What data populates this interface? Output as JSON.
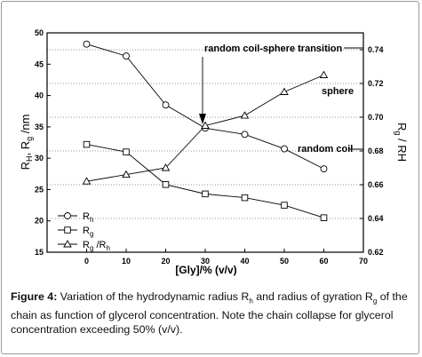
{
  "chart_data": {
    "type": "line",
    "x": [
      0,
      10,
      20,
      30,
      40,
      50,
      60
    ],
    "xlim": [
      -10,
      70
    ],
    "xticks": [
      0,
      10,
      20,
      30,
      40,
      50,
      60,
      70
    ],
    "xlabel": "[Gly]/% (v/v)",
    "ylabel_left_main": "R",
    "ylabel_left_sub1": "H",
    "ylabel_left_mid": ", R",
    "ylabel_left_sub2": "g",
    "ylabel_left_unit": " /nm",
    "ylim_left": [
      15,
      50
    ],
    "yticks_left": [
      15,
      20,
      25,
      30,
      35,
      40,
      45,
      50
    ],
    "ylabel_right_main": "R",
    "ylabel_right_sub": "g",
    "ylabel_right_rest": " / RH",
    "ylim_right": [
      0.62,
      0.75
    ],
    "yticks_right": [
      "0.62",
      "0.64",
      "0.66",
      "0.68",
      "0.70",
      "0.72",
      "0.74"
    ],
    "grid": "dotted horizontal at right-axis ticks",
    "legend_position": "bottom-left",
    "series": [
      {
        "name": "Rh",
        "legend_main": "R",
        "legend_sub": "h",
        "legend_suffix": "",
        "marker": "circle",
        "axis": "left",
        "values": [
          48.2,
          46.3,
          38.5,
          34.8,
          33.8,
          31.5,
          28.3
        ]
      },
      {
        "name": "Rg",
        "legend_main": "R",
        "legend_sub": "g",
        "legend_suffix": "",
        "marker": "square",
        "axis": "left",
        "values": [
          32.2,
          31.0,
          25.8,
          24.3,
          23.7,
          22.5,
          20.5
        ]
      },
      {
        "name": "Rg/Rh",
        "legend_main": "R",
        "legend_sub": "g",
        "legend_suffix": " /R",
        "legend_sub2": "h",
        "marker": "triangle",
        "axis": "right",
        "values": [
          0.662,
          0.666,
          0.67,
          0.695,
          0.701,
          0.715,
          0.725
        ]
      }
    ],
    "annotations": {
      "transition": "random coil-sphere transition",
      "sphere": "sphere",
      "coil": "random coil"
    }
  },
  "caption": {
    "label": "Figure 4:",
    "text": " Variation of the hydrodynamic radius R",
    "sub_h": "h",
    "text2": " and radius of gyration R",
    "sub_g": "g",
    "text3": " of the chain as function of   glycerol concentration. Note the chain collapse for glycerol concentration exceeding 50% (v/v)."
  }
}
